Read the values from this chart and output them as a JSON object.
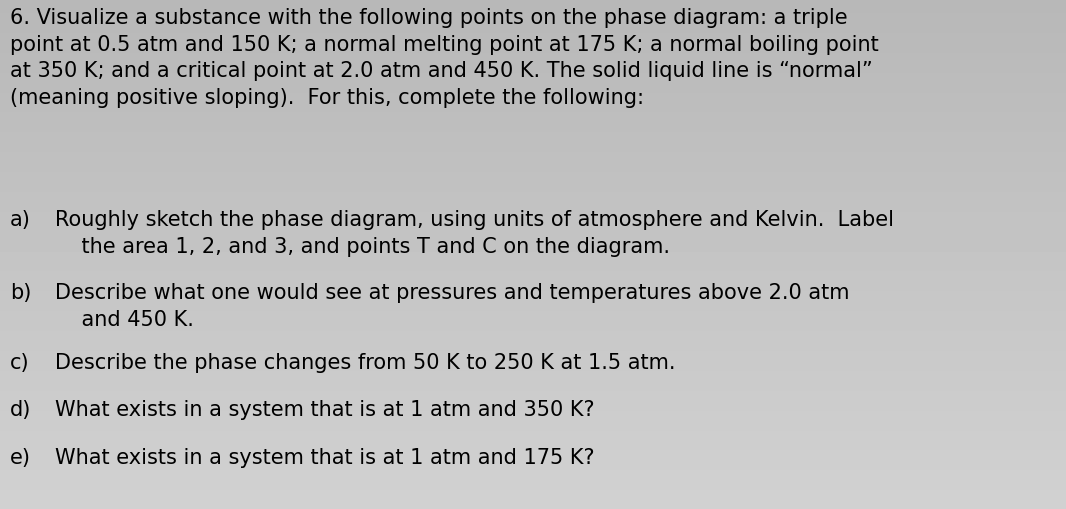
{
  "background_color": "#c8c8c8",
  "text_color": "#000000",
  "font_family": "DejaVu Sans",
  "title_text": "6. Visualize a substance with the following points on the phase diagram: a triple\npoint at 0.5 atm and 150 K; a normal melting point at 175 K; a normal boiling point\nat 350 K; and a critical point at 2.0 atm and 450 K. The solid liquid line is “normal”\n(meaning positive sloping).  For this, complete the following:",
  "items": [
    {
      "label": "a)",
      "text": "Roughly sketch the phase diagram, using units of atmosphere and Kelvin.  Label\n    the area 1, 2, and 3, and points T and C on the diagram."
    },
    {
      "label": "b)",
      "text": "Describe what one would see at pressures and temperatures above 2.0 atm\n    and 450 K."
    },
    {
      "label": "c)",
      "text": "Describe the phase changes from 50 K to 250 K at 1.5 atm."
    },
    {
      "label": "d)",
      "text": "What exists in a system that is at 1 atm and 350 K?"
    },
    {
      "label": "e)",
      "text": "What exists in a system that is at 1 atm and 175 K?"
    }
  ],
  "title_fontsize": 15.0,
  "item_fontsize": 15.0,
  "figsize": [
    10.66,
    5.1
  ],
  "dpi": 100
}
